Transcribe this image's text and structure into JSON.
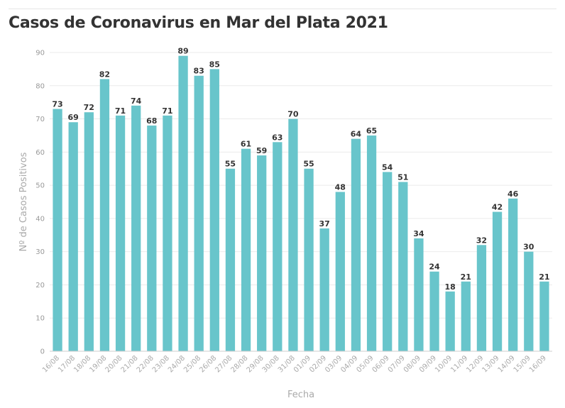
{
  "title": "Casos de Coronavirus en Mar del Plata 2021",
  "chart_data": {
    "type": "bar",
    "title": "Casos de Coronavirus en Mar del Plata 2021",
    "xlabel": "Fecha",
    "ylabel": "Nº de Casos Positivos",
    "ylim": [
      0,
      90
    ],
    "yticks": [
      0,
      10,
      20,
      30,
      40,
      50,
      60,
      70,
      80,
      90
    ],
    "grid": true,
    "bar_color": "#68c5cb",
    "categories": [
      "16/08",
      "17/08",
      "18/08",
      "19/08",
      "20/08",
      "21/08",
      "22/08",
      "23/08",
      "24/08",
      "25/08",
      "26/08",
      "27/08",
      "28/08",
      "29/08",
      "30/08",
      "31/08",
      "01/09",
      "02/09",
      "03/09",
      "04/09",
      "05/09",
      "06/09",
      "07/09",
      "08/09",
      "09/09",
      "10/09",
      "11/09",
      "12/09",
      "13/09",
      "14/09",
      "15/09",
      "16/09"
    ],
    "values": [
      73,
      69,
      72,
      82,
      71,
      74,
      68,
      71,
      89,
      83,
      85,
      55,
      61,
      59,
      63,
      70,
      55,
      37,
      48,
      64,
      65,
      54,
      51,
      34,
      24,
      18,
      21,
      32,
      42,
      46,
      30,
      21
    ]
  }
}
